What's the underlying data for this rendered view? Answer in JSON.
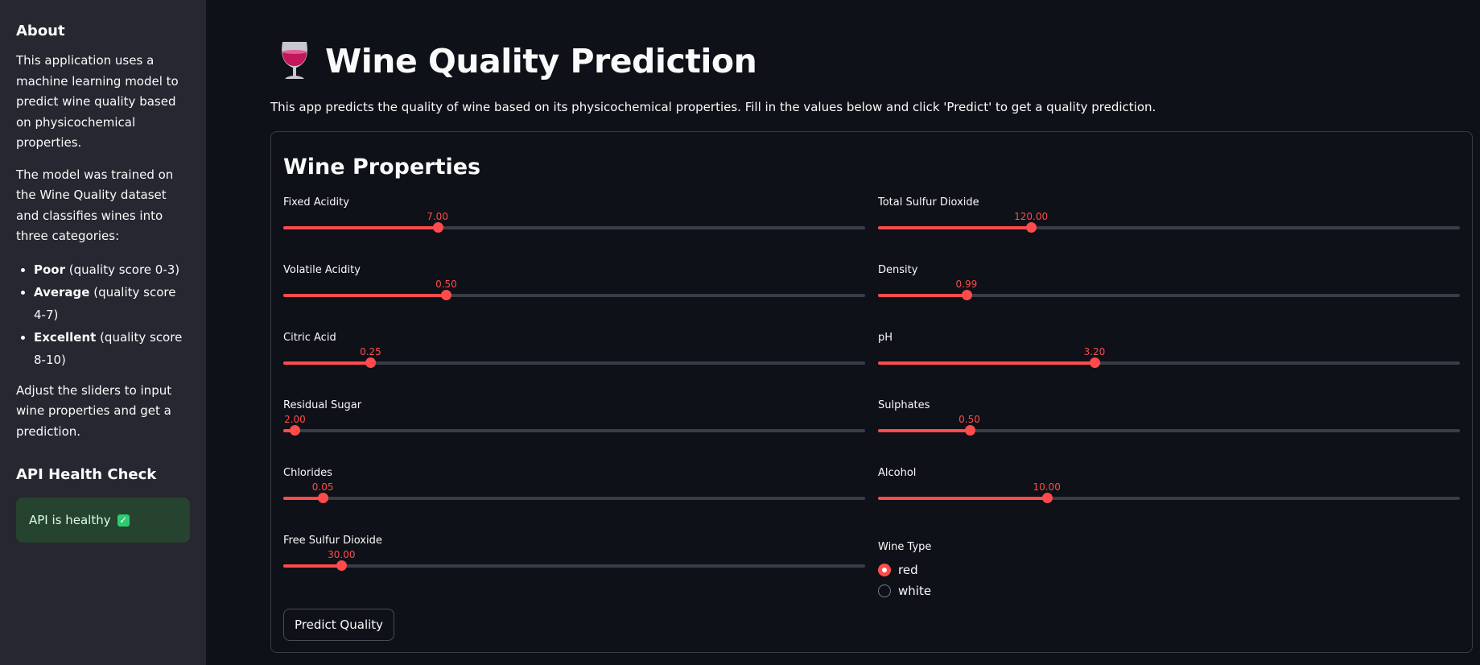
{
  "sidebar": {
    "about_title": "About",
    "about_p1": "This application uses a machine learning model to predict wine quality based on physicochemical properties.",
    "about_p2": "The model was trained on the Wine Quality dataset and classifies wines into three categories:",
    "categories": [
      {
        "name": "Poor",
        "desc": " (quality score 0-3)"
      },
      {
        "name": "Average",
        "desc": " (quality score 4-7)"
      },
      {
        "name": "Excellent",
        "desc": " (quality score 8-10)"
      }
    ],
    "about_p3": "Adjust the sliders to input wine properties and get a prediction.",
    "health_title": "API Health Check",
    "health_status": "API is healthy",
    "health_icon": "check-mark-icon"
  },
  "main": {
    "title": "Wine Quality Prediction",
    "title_icon": "wine-glass-icon",
    "description": "This app predicts the quality of wine based on its physicochemical properties. Fill in the values below and click 'Predict' to get a quality prediction.",
    "card_title": "Wine Properties",
    "sliders": [
      {
        "label": "Fixed Acidity",
        "value": "7.00",
        "level": 0.265
      },
      {
        "label": "Volatile Acidity",
        "value": "0.50",
        "level": 0.28
      },
      {
        "label": "Citric Acid",
        "value": "0.25",
        "level": 0.15
      },
      {
        "label": "Residual Sugar",
        "value": "2.00",
        "level": 0.02
      },
      {
        "label": "Chlorides",
        "value": "0.05",
        "level": 0.068
      },
      {
        "label": "Free Sulfur Dioxide",
        "value": "30.00",
        "level": 0.1
      },
      {
        "label": "Total Sulfur Dioxide",
        "value": "120.00",
        "level": 0.263
      },
      {
        "label": "Density",
        "value": "0.99",
        "level": 0.152
      },
      {
        "label": "pH",
        "value": "3.20",
        "level": 0.372
      },
      {
        "label": "Sulphates",
        "value": "0.50",
        "level": 0.157
      },
      {
        "label": "Alcohol",
        "value": "10.00",
        "level": 0.29
      }
    ],
    "wine_type": {
      "label": "Wine Type",
      "options": [
        "red",
        "white"
      ],
      "selected": "red"
    },
    "predict_button": "Predict Quality"
  },
  "colors": {
    "accent": "#ff4b4b",
    "background": "#0e1117",
    "sidebar": "#262730",
    "health_bg": "#26432f"
  }
}
